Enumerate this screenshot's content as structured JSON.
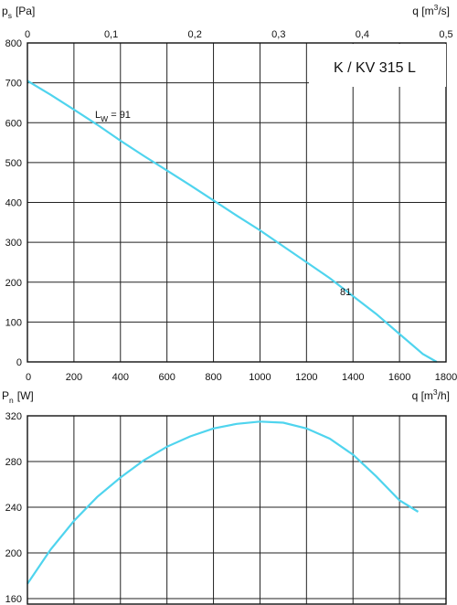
{
  "chart_data": [
    {
      "type": "line",
      "title": "K / KV 315 L",
      "ylabel": {
        "main": "p",
        "sub": "s",
        "unit": "[Pa]"
      },
      "xlabel_top": {
        "main": "q [m",
        "sup": "3",
        "end": "/s]"
      },
      "xlabel_bottom": {
        "main": "q [m",
        "sup": "3",
        "end": "/h]"
      },
      "xlim": [
        0,
        1800
      ],
      "xlim_top": [
        0,
        0.5
      ],
      "ylim": [
        0,
        800
      ],
      "xticks": [
        0,
        200,
        400,
        600,
        800,
        1000,
        1200,
        1400,
        1600,
        1800
      ],
      "xticks_top": [
        "0",
        "0,1",
        "0,2",
        "0,3",
        "0,4",
        "0,5"
      ],
      "yticks": [
        0,
        100,
        200,
        300,
        400,
        500,
        600,
        700,
        800
      ],
      "grid": true,
      "annotations": [
        {
          "main": "L",
          "sub": "W",
          "end": " = 91",
          "x": 270,
          "y": 620
        },
        {
          "text": "81",
          "x": 1380,
          "y": 160
        }
      ],
      "series": [
        {
          "x": [
            0,
            100,
            200,
            300,
            400,
            500,
            600,
            700,
            800,
            900,
            1000,
            1100,
            1200,
            1300,
            1400,
            1500,
            1600,
            1700,
            1760
          ],
          "values": [
            705,
            670,
            633,
            595,
            555,
            517,
            480,
            443,
            405,
            367,
            330,
            290,
            250,
            210,
            165,
            120,
            70,
            20,
            0
          ]
        }
      ]
    },
    {
      "type": "line",
      "ylabel": {
        "main": "P",
        "sub": "n",
        "unit": "[W]"
      },
      "xlim": [
        0,
        1800
      ],
      "ylim": [
        160,
        320
      ],
      "yticks": [
        160,
        200,
        240,
        280,
        320
      ],
      "grid": true,
      "series": [
        {
          "x": [
            0,
            100,
            200,
            300,
            400,
            500,
            600,
            700,
            800,
            900,
            1000,
            1100,
            1200,
            1300,
            1400,
            1500,
            1600,
            1680
          ],
          "values": [
            173,
            203,
            228,
            249,
            266,
            281,
            293,
            302,
            309,
            313,
            315,
            314,
            309,
            300,
            286,
            267,
            246,
            236
          ]
        }
      ]
    }
  ]
}
